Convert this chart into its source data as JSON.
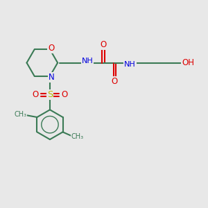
{
  "bg_color": "#e8e8e8",
  "bond_color": "#3a7a55",
  "N_color": "#0000dd",
  "O_color": "#dd0000",
  "S_color": "#bbbb00",
  "lw": 1.5,
  "fs": 7.5,
  "figsize": [
    3.0,
    3.0
  ],
  "dpi": 100,
  "xlim": [
    0,
    10
  ],
  "ylim": [
    0,
    10
  ]
}
